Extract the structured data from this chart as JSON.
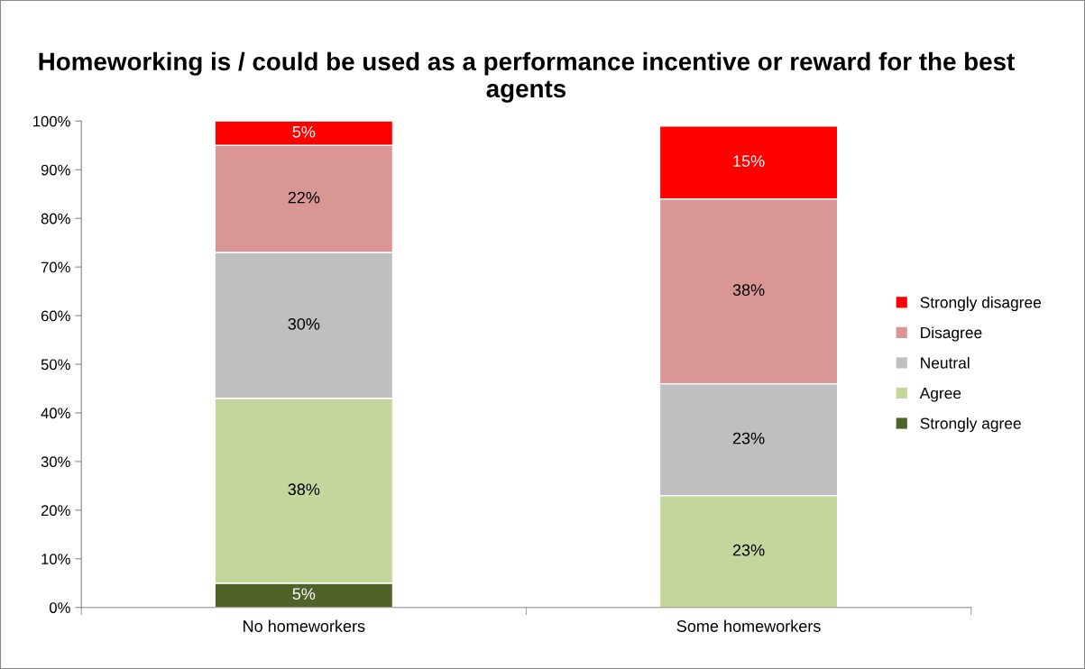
{
  "chart_data": {
    "type": "bar",
    "title": "Homeworking is / could be used as a performance incentive or reward for the best agents",
    "categories": [
      "No homeworkers",
      "Some homeworkers"
    ],
    "stacked": true,
    "series": [
      {
        "name": "Strongly agree",
        "color": "#4f6228",
        "values": [
          5,
          0
        ],
        "value_labels": [
          "5%",
          null
        ]
      },
      {
        "name": "Agree",
        "color": "#c3d69b",
        "values": [
          38,
          23
        ],
        "value_labels": [
          "38%",
          "23%"
        ]
      },
      {
        "name": "Neutral",
        "color": "#bfbfbf",
        "values": [
          30,
          23
        ],
        "value_labels": [
          "30%",
          "23%"
        ]
      },
      {
        "name": "Disagree",
        "color": "#d99694",
        "values": [
          22,
          38
        ],
        "value_labels": [
          "22%",
          "38%"
        ]
      },
      {
        "name": "Strongly disagree",
        "color": "#ff0000",
        "values": [
          5,
          15
        ],
        "value_labels": [
          "5%",
          "15%"
        ]
      }
    ],
    "ylim": [
      0,
      100
    ],
    "yticks": [
      {
        "value": 0,
        "label": "0%"
      },
      {
        "value": 10,
        "label": "10%"
      },
      {
        "value": 20,
        "label": "20%"
      },
      {
        "value": 30,
        "label": "30%"
      },
      {
        "value": 40,
        "label": "40%"
      },
      {
        "value": 50,
        "label": "50%"
      },
      {
        "value": 60,
        "label": "60%"
      },
      {
        "value": 70,
        "label": "70%"
      },
      {
        "value": 80,
        "label": "80%"
      },
      {
        "value": 90,
        "label": "90%"
      },
      {
        "value": 100,
        "label": "100%"
      }
    ],
    "grid": false,
    "legend": "right"
  }
}
